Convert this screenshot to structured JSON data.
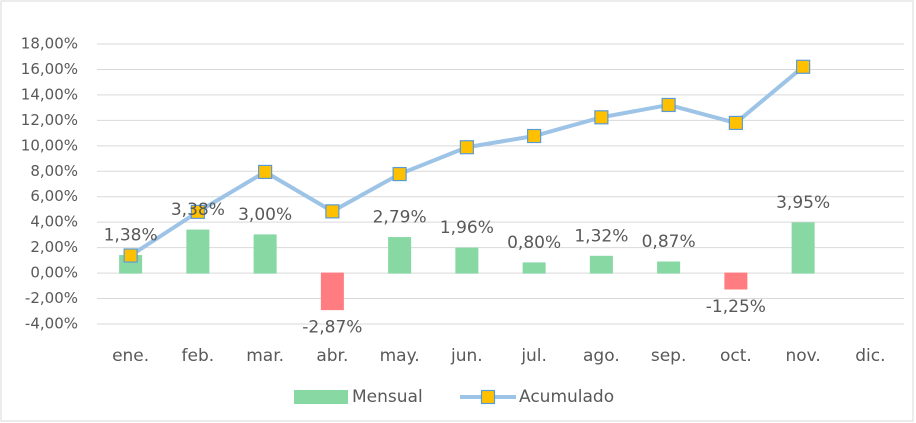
{
  "chart_data": {
    "type": "bar-line",
    "categories": [
      "ene.",
      "feb.",
      "mar.",
      "abr.",
      "may.",
      "jun.",
      "jul.",
      "ago.",
      "sep.",
      "oct.",
      "nov.",
      "dic."
    ],
    "series": [
      {
        "name": "Mensual",
        "type": "bar",
        "color": "#88d8a4",
        "negative_color": "#ff7c80",
        "values": [
          1.38,
          3.38,
          3.0,
          -2.87,
          2.79,
          1.96,
          0.8,
          1.32,
          0.87,
          -1.25,
          3.95,
          null
        ],
        "value_labels": [
          "1,38%",
          "3,38%",
          "3,00%",
          "-2,87%",
          "2,79%",
          "1,96%",
          "0,80%",
          "1,32%",
          "0,87%",
          "-1,25%",
          "3,95%",
          null
        ]
      },
      {
        "name": "Acumulado",
        "type": "line",
        "color": "#9dc3e6",
        "marker_color": "#ffc000",
        "marker_edge": "#5b9bd5",
        "values": [
          1.38,
          4.81,
          7.95,
          4.85,
          7.78,
          9.89,
          10.77,
          12.24,
          13.21,
          11.8,
          16.21,
          null
        ]
      }
    ],
    "ylim": [
      -4,
      18
    ],
    "yticks": [
      {
        "value": -4,
        "label": "-4,00%"
      },
      {
        "value": -2,
        "label": "-2,00%"
      },
      {
        "value": 0,
        "label": "0,00%"
      },
      {
        "value": 2,
        "label": "2,00%"
      },
      {
        "value": 4,
        "label": "4,00%"
      },
      {
        "value": 6,
        "label": "6,00%"
      },
      {
        "value": 8,
        "label": "8,00%"
      },
      {
        "value": 10,
        "label": "10,00%"
      },
      {
        "value": 12,
        "label": "12,00%"
      },
      {
        "value": 14,
        "label": "14,00%"
      },
      {
        "value": 16,
        "label": "16,00%"
      },
      {
        "value": 18,
        "label": "18,00%"
      }
    ],
    "grid": true,
    "legend": "bottom"
  }
}
